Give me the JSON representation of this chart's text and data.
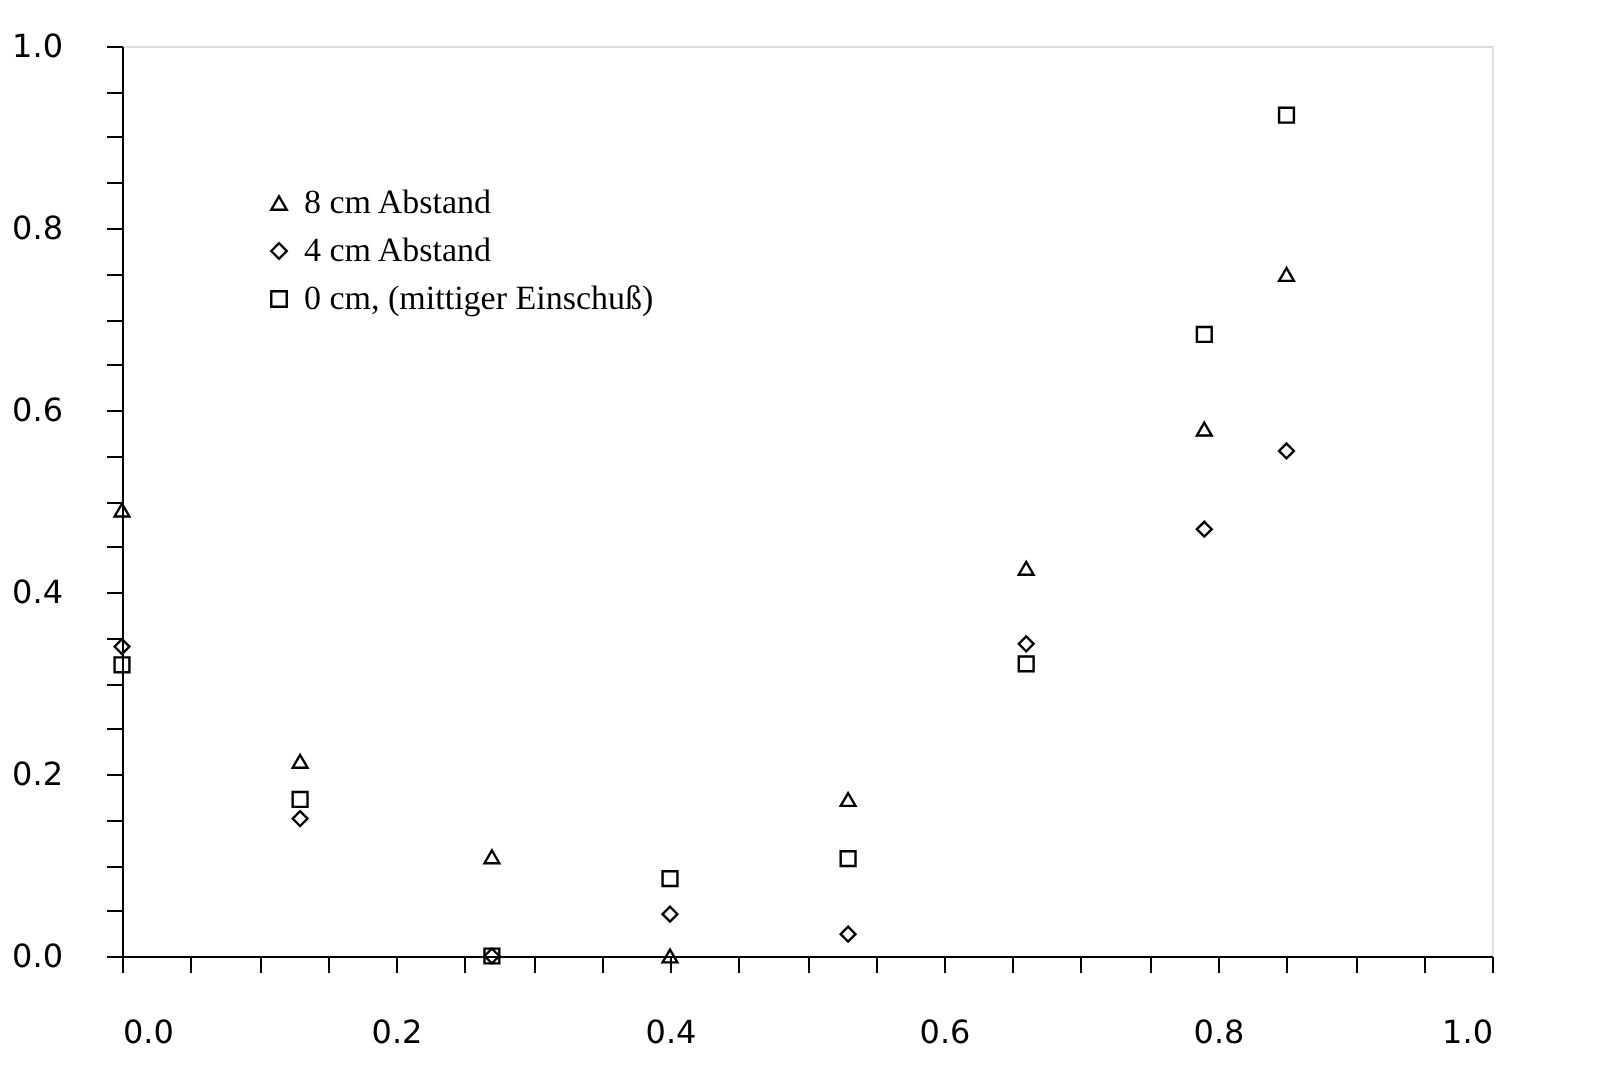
{
  "chart_data": {
    "type": "scatter",
    "series": [
      {
        "name": "8 cm Abstand",
        "color": "#000000",
        "marker": "triangle",
        "x": [
          0.0,
          0.13,
          0.27,
          0.4,
          0.53,
          0.66,
          0.79,
          0.85
        ],
        "values": [
          0.49,
          0.214,
          0.109,
          0.0,
          0.172,
          0.426,
          0.579,
          0.749
        ]
      },
      {
        "name": "4 cm Abstand",
        "color": "#000000",
        "marker": "diamond",
        "x": [
          0.0,
          0.13,
          0.27,
          0.4,
          0.53,
          0.66,
          0.79,
          0.85
        ],
        "values": [
          0.34,
          0.151,
          0.0,
          0.046,
          0.024,
          0.343,
          0.469,
          0.555
        ]
      },
      {
        "name": "0 cm, (mittiger Einschuß)",
        "color": "#000000",
        "marker": "square",
        "x": [
          0.0,
          0.13,
          0.27,
          0.4,
          0.53,
          0.66,
          0.79,
          0.85
        ],
        "values": [
          0.32,
          0.172,
          0.0,
          0.085,
          0.107,
          0.321,
          0.683,
          0.924
        ]
      }
    ],
    "xlim": [
      0,
      1
    ],
    "ylim": [
      0,
      1
    ],
    "xticks": [
      {
        "value": 0,
        "label": "0.0"
      },
      {
        "value": 0.05,
        "label": null
      },
      {
        "value": 0.1,
        "label": null
      },
      {
        "value": 0.15,
        "label": null
      },
      {
        "value": 0.2,
        "label": "0.2"
      },
      {
        "value": 0.25,
        "label": null
      },
      {
        "value": 0.3,
        "label": null
      },
      {
        "value": 0.35,
        "label": null
      },
      {
        "value": 0.4,
        "label": "0.4"
      },
      {
        "value": 0.45,
        "label": null
      },
      {
        "value": 0.5,
        "label": null
      },
      {
        "value": 0.55,
        "label": null
      },
      {
        "value": 0.6,
        "label": "0.6"
      },
      {
        "value": 0.65,
        "label": null
      },
      {
        "value": 0.7,
        "label": null
      },
      {
        "value": 0.75,
        "label": null
      },
      {
        "value": 0.8,
        "label": "0.8"
      },
      {
        "value": 0.85,
        "label": null
      },
      {
        "value": 0.9,
        "label": null
      },
      {
        "value": 0.95,
        "label": null
      },
      {
        "value": 1,
        "label": "1.0"
      }
    ],
    "yticks": [
      {
        "value": 0,
        "label": "0.0"
      },
      {
        "value": 0.05,
        "label": null
      },
      {
        "value": 0.1,
        "label": null
      },
      {
        "value": 0.15,
        "label": null
      },
      {
        "value": 0.2,
        "label": "0.2"
      },
      {
        "value": 0.25,
        "label": null
      },
      {
        "value": 0.3,
        "label": null
      },
      {
        "value": 0.35,
        "label": null
      },
      {
        "value": 0.4,
        "label": "0.4"
      },
      {
        "value": 0.45,
        "label": null
      },
      {
        "value": 0.5,
        "label": null
      },
      {
        "value": 0.55,
        "label": null
      },
      {
        "value": 0.6,
        "label": "0.6"
      },
      {
        "value": 0.65,
        "label": null
      },
      {
        "value": 0.7,
        "label": null
      },
      {
        "value": 0.75,
        "label": null
      },
      {
        "value": 0.8,
        "label": "0.8"
      },
      {
        "value": 0.85,
        "label": null
      },
      {
        "value": 0.9,
        "label": null
      },
      {
        "value": 0.95,
        "label": null
      },
      {
        "value": 1,
        "label": "1.0"
      }
    ],
    "grid": false,
    "legend": "top left"
  }
}
